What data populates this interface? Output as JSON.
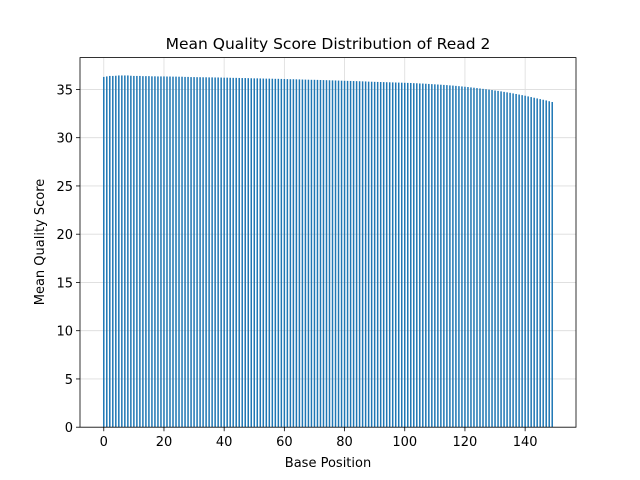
{
  "chart_data": {
    "type": "bar",
    "title": "Mean Quality Score Distribution of Read 2",
    "xlabel": "Base Position",
    "ylabel": "Mean Quality Score",
    "color": "#1f77b4",
    "grid": true,
    "x": [
      0,
      1,
      2,
      3,
      4,
      5,
      6,
      7,
      8,
      9,
      10,
      11,
      12,
      13,
      14,
      15,
      16,
      17,
      18,
      19,
      20,
      21,
      22,
      23,
      24,
      25,
      26,
      27,
      28,
      29,
      30,
      31,
      32,
      33,
      34,
      35,
      36,
      37,
      38,
      39,
      40,
      41,
      42,
      43,
      44,
      45,
      46,
      47,
      48,
      49,
      50,
      51,
      52,
      53,
      54,
      55,
      56,
      57,
      58,
      59,
      60,
      61,
      62,
      63,
      64,
      65,
      66,
      67,
      68,
      69,
      70,
      71,
      72,
      73,
      74,
      75,
      76,
      77,
      78,
      79,
      80,
      81,
      82,
      83,
      84,
      85,
      86,
      87,
      88,
      89,
      90,
      91,
      92,
      93,
      94,
      95,
      96,
      97,
      98,
      99,
      100,
      101,
      102,
      103,
      104,
      105,
      106,
      107,
      108,
      109,
      110,
      111,
      112,
      113,
      114,
      115,
      116,
      117,
      118,
      119,
      120,
      121,
      122,
      123,
      124,
      125,
      126,
      127,
      128,
      129,
      130,
      131,
      132,
      133,
      134,
      135,
      136,
      137,
      138,
      139,
      140,
      141,
      142,
      143,
      144,
      145,
      146,
      147,
      148,
      149
    ],
    "values": [
      36.3,
      36.35,
      36.4,
      36.4,
      36.42,
      36.45,
      36.45,
      36.45,
      36.45,
      36.42,
      36.4,
      36.4,
      36.4,
      36.38,
      36.38,
      36.38,
      36.36,
      36.36,
      36.35,
      36.35,
      36.35,
      36.34,
      36.34,
      36.33,
      36.33,
      36.32,
      36.32,
      36.3,
      36.3,
      36.28,
      36.28,
      36.27,
      36.27,
      36.26,
      36.26,
      36.25,
      36.25,
      36.24,
      36.24,
      36.23,
      36.22,
      36.22,
      36.21,
      36.2,
      36.2,
      36.19,
      36.18,
      36.18,
      36.17,
      36.16,
      36.15,
      36.15,
      36.14,
      36.13,
      36.12,
      36.12,
      36.11,
      36.1,
      36.1,
      36.09,
      36.08,
      36.07,
      36.06,
      36.06,
      36.05,
      36.04,
      36.03,
      36.02,
      36.01,
      36.0,
      36.0,
      35.99,
      35.98,
      35.97,
      35.96,
      35.95,
      35.94,
      35.93,
      35.92,
      35.91,
      35.9,
      35.89,
      35.88,
      35.87,
      35.86,
      35.85,
      35.84,
      35.83,
      35.81,
      35.8,
      35.79,
      35.78,
      35.77,
      35.76,
      35.75,
      35.74,
      35.73,
      35.72,
      35.71,
      35.7,
      35.69,
      35.68,
      35.67,
      35.65,
      35.64,
      35.62,
      35.61,
      35.59,
      35.57,
      35.55,
      35.53,
      35.51,
      35.49,
      35.47,
      35.45,
      35.42,
      35.4,
      35.37,
      35.34,
      35.31,
      35.28,
      35.25,
      35.21,
      35.18,
      35.14,
      35.1,
      35.06,
      35.02,
      34.98,
      34.94,
      34.89,
      34.85,
      34.8,
      34.75,
      34.7,
      34.65,
      34.59,
      34.53,
      34.47,
      34.41,
      34.35,
      34.28,
      34.21,
      34.14,
      34.07,
      34.0,
      33.93,
      33.86,
      33.78,
      33.7
    ],
    "xlim": [
      -7.9,
      156.9
    ],
    "xticks": [
      0,
      20,
      40,
      60,
      80,
      100,
      120,
      140
    ],
    "ylim": [
      0,
      38.3
    ],
    "yticks": [
      0,
      5,
      10,
      15,
      20,
      25,
      30,
      35
    ]
  }
}
